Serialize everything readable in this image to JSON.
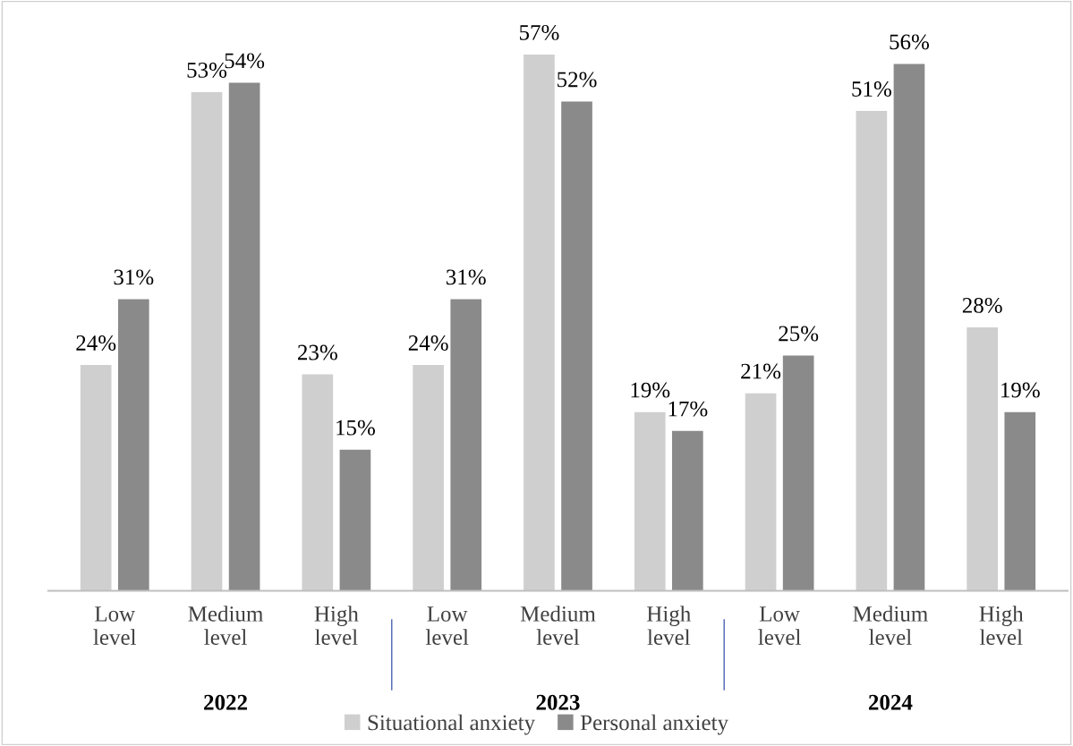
{
  "chart_data": {
    "type": "bar",
    "categories": [
      "Low level",
      "Medium level",
      "High level",
      "Low level",
      "Medium level",
      "High level",
      "Low level",
      "Medium level",
      "High level"
    ],
    "series": [
      {
        "name": "Situational anxiety",
        "color": "#cfcfcf",
        "values": [
          24,
          53,
          23,
          24,
          57,
          19,
          21,
          51,
          28
        ],
        "value_labels": [
          "24%",
          "53%",
          "23%",
          "24%",
          "57%",
          "19%",
          "21%",
          "51%",
          "28%"
        ]
      },
      {
        "name": "Personal anxiety",
        "color": "#8a8a8a",
        "values": [
          31,
          54,
          15,
          31,
          52,
          17,
          25,
          56,
          19
        ],
        "value_labels": [
          "31%",
          "54%",
          "15%",
          "31%",
          "52%",
          "17%",
          "25%",
          "56%",
          "19%"
        ]
      }
    ],
    "annotations": [
      "2022",
      "2023",
      "2024"
    ],
    "tick_labels": "x",
    "grid": false,
    "legend": "bottom"
  }
}
